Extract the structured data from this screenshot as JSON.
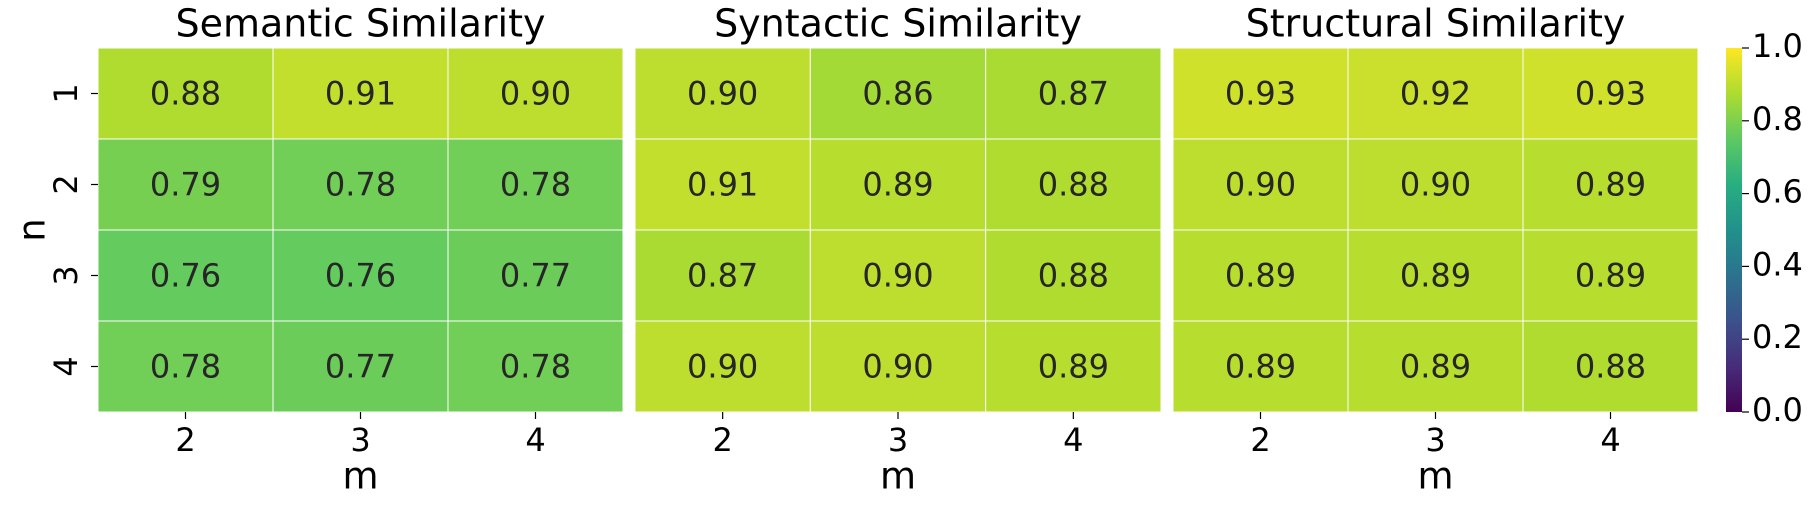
{
  "chart_data": [
    {
      "type": "heatmap",
      "title": "Semantic Similarity",
      "x_label": "m",
      "y_label": "n",
      "x_categories": [
        "2",
        "3",
        "4"
      ],
      "y_categories": [
        "1",
        "2",
        "3",
        "4"
      ],
      "values": [
        [
          0.88,
          0.91,
          0.9
        ],
        [
          0.79,
          0.78,
          0.78
        ],
        [
          0.76,
          0.76,
          0.77
        ],
        [
          0.78,
          0.77,
          0.78
        ]
      ],
      "value_labels": [
        [
          "0.88",
          "0.91",
          "0.90"
        ],
        [
          "0.79",
          "0.78",
          "0.78"
        ],
        [
          "0.76",
          "0.76",
          "0.77"
        ],
        [
          "0.78",
          "0.77",
          "0.78"
        ]
      ],
      "colormap": "viridis",
      "zlim": [
        0,
        1
      ]
    },
    {
      "type": "heatmap",
      "title": "Syntactic Similarity",
      "x_label": "m",
      "x_categories": [
        "2",
        "3",
        "4"
      ],
      "y_categories": [
        null,
        null,
        null,
        null
      ],
      "values": [
        [
          0.9,
          0.86,
          0.87
        ],
        [
          0.91,
          0.89,
          0.88
        ],
        [
          0.87,
          0.9,
          0.88
        ],
        [
          0.9,
          0.9,
          0.89
        ]
      ],
      "value_labels": [
        [
          "0.90",
          "0.86",
          "0.87"
        ],
        [
          "0.91",
          "0.89",
          "0.88"
        ],
        [
          "0.87",
          "0.90",
          "0.88"
        ],
        [
          "0.90",
          "0.90",
          "0.89"
        ]
      ],
      "colormap": "viridis",
      "zlim": [
        0,
        1
      ]
    },
    {
      "type": "heatmap",
      "title": "Structural Similarity",
      "x_label": "m",
      "x_categories": [
        "2",
        "3",
        "4"
      ],
      "y_categories": [
        null,
        null,
        null,
        null
      ],
      "values": [
        [
          0.93,
          0.92,
          0.93
        ],
        [
          0.9,
          0.9,
          0.89
        ],
        [
          0.89,
          0.89,
          0.89
        ],
        [
          0.89,
          0.89,
          0.88
        ]
      ],
      "value_labels": [
        [
          "0.93",
          "0.92",
          "0.93"
        ],
        [
          "0.90",
          "0.90",
          "0.89"
        ],
        [
          "0.89",
          "0.89",
          "0.89"
        ],
        [
          "0.89",
          "0.89",
          "0.88"
        ]
      ],
      "colormap": "viridis",
      "zlim": [
        0,
        1
      ],
      "colorbar": {
        "zlim": [
          0,
          1
        ],
        "zticks": [
          {
            "value": 0,
            "label": "0.0"
          },
          0.2,
          0.4,
          0.6,
          0.8,
          {
            "value": 1,
            "label": "1.0"
          }
        ]
      }
    }
  ]
}
